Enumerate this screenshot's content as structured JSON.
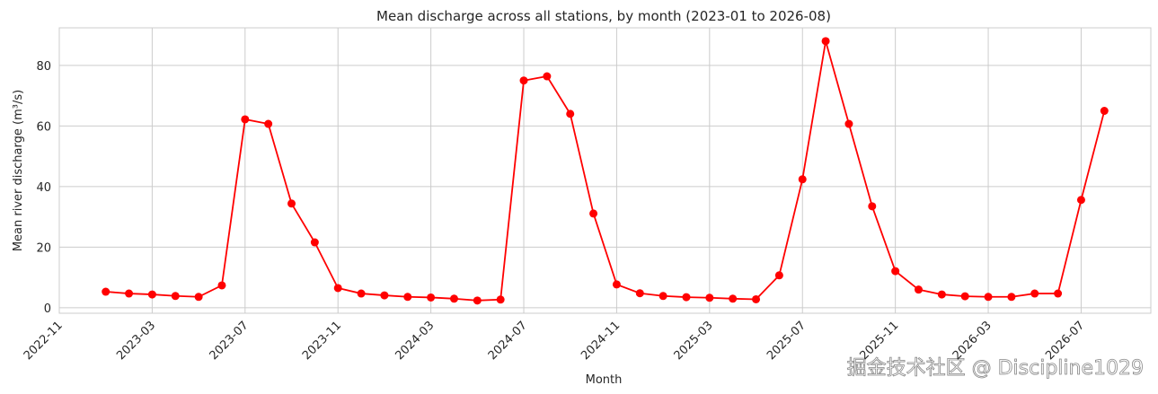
{
  "chart_data": {
    "type": "line",
    "title": "Mean discharge across all stations, by month (2023-01 to 2026-08)",
    "x_label": "Month",
    "y_label": "Mean river discharge (m³/s)",
    "watermark": "掘金技术社区 @ Discipline1029",
    "x": [
      "2023-01",
      "2023-02",
      "2023-03",
      "2023-04",
      "2023-05",
      "2023-06",
      "2023-07",
      "2023-08",
      "2023-09",
      "2023-10",
      "2023-11",
      "2023-12",
      "2024-01",
      "2024-02",
      "2024-03",
      "2024-04",
      "2024-05",
      "2024-06",
      "2024-07",
      "2024-08",
      "2024-09",
      "2024-10",
      "2024-11",
      "2024-12",
      "2025-01",
      "2025-02",
      "2025-03",
      "2025-04",
      "2025-05",
      "2025-06",
      "2025-07",
      "2025-08",
      "2025-09",
      "2025-10",
      "2025-11",
      "2025-12",
      "2026-01",
      "2026-02",
      "2026-03",
      "2026-04",
      "2026-05",
      "2026-06",
      "2026-07",
      "2026-08"
    ],
    "series": [
      {
        "name": "Mean discharge",
        "color": "#ff0000",
        "values": [
          5.3,
          4.7,
          4.4,
          3.9,
          3.6,
          7.4,
          62.2,
          60.7,
          34.4,
          21.6,
          6.5,
          4.7,
          4.1,
          3.6,
          3.4,
          3.0,
          2.4,
          2.7,
          75.0,
          76.4,
          64.0,
          31.1,
          7.7,
          4.8,
          3.9,
          3.5,
          3.3,
          3.0,
          2.8,
          10.7,
          42.4,
          88.0,
          60.7,
          33.5,
          12.1,
          6.0,
          4.4,
          3.8,
          3.6,
          3.6,
          4.7,
          4.7,
          35.6,
          65.0
        ]
      }
    ],
    "xlim": [
      "2022-11",
      "2026-10"
    ],
    "xticks": [
      "2022-11",
      "2023-03",
      "2023-07",
      "2023-11",
      "2024-03",
      "2024-07",
      "2024-11",
      "2025-03",
      "2025-07",
      "2025-11",
      "2026-03",
      "2026-07"
    ],
    "ylim": [
      -1.8,
      92.4
    ],
    "yticks": [
      0,
      20,
      40,
      60,
      80
    ],
    "grid": true
  }
}
